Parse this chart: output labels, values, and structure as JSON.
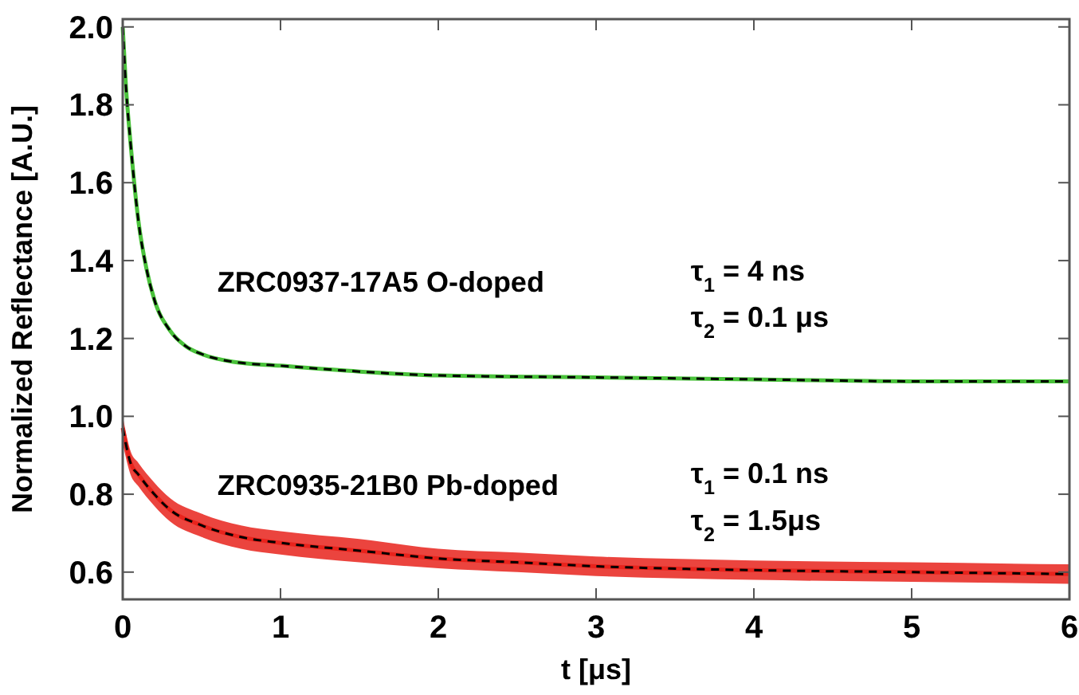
{
  "chart_data": {
    "type": "line",
    "xlabel": "t [μs]",
    "ylabel": "Normalized Reflectance [A.U.]",
    "xlim": [
      0,
      6
    ],
    "ylim": [
      0.53,
      2.02
    ],
    "xticks": [
      0,
      1,
      2,
      3,
      4,
      5,
      6
    ],
    "yticks": [
      0.6,
      0.8,
      {
        "value": 1,
        "label": "1.0"
      },
      1.2,
      1.4,
      1.6,
      1.8,
      {
        "value": 2,
        "label": "2.0"
      }
    ],
    "grid": false,
    "marker": "none",
    "series": [
      {
        "color": "#49c23a",
        "x": [
          0,
          0.02,
          0.05,
          0.1,
          0.15,
          0.2,
          0.3,
          0.4,
          0.5,
          0.7,
          1.0,
          1.5,
          2,
          3,
          4,
          5,
          6
        ],
        "values": [
          2.0,
          1.85,
          1.7,
          1.5,
          1.38,
          1.3,
          1.22,
          1.18,
          1.16,
          1.14,
          1.13,
          1.115,
          1.105,
          1.1,
          1.095,
          1.09,
          1.09
        ]
      },
      {
        "color": "#e8231c",
        "x": [
          0,
          0.05,
          0.1,
          0.2,
          0.3,
          0.5,
          0.75,
          1,
          1.5,
          2,
          2.5,
          3,
          4,
          5,
          6
        ],
        "values": [
          0.97,
          0.88,
          0.85,
          0.8,
          0.76,
          0.72,
          0.69,
          0.675,
          0.655,
          0.635,
          0.625,
          0.615,
          0.605,
          0.6,
          0.595
        ],
        "lower": [
          0.93,
          0.85,
          0.82,
          0.77,
          0.73,
          0.69,
          0.66,
          0.645,
          0.625,
          0.61,
          0.6,
          0.59,
          0.58,
          0.575,
          0.57
        ],
        "upper": [
          1.0,
          0.91,
          0.88,
          0.83,
          0.79,
          0.75,
          0.72,
          0.705,
          0.685,
          0.66,
          0.65,
          0.64,
          0.63,
          0.625,
          0.62
        ]
      },
      {
        "color": "#000000",
        "line_style": "dashed",
        "x": [
          0,
          0.02,
          0.05,
          0.1,
          0.15,
          0.2,
          0.3,
          0.4,
          0.5,
          0.7,
          1.0,
          1.5,
          2,
          3,
          4,
          5,
          6
        ],
        "values": [
          2.0,
          1.85,
          1.7,
          1.5,
          1.38,
          1.3,
          1.22,
          1.18,
          1.16,
          1.14,
          1.13,
          1.115,
          1.105,
          1.1,
          1.095,
          1.09,
          1.09
        ]
      },
      {
        "color": "#000000",
        "line_style": "dashed",
        "x": [
          0,
          0.05,
          0.1,
          0.2,
          0.3,
          0.5,
          0.75,
          1,
          1.5,
          2,
          2.5,
          3,
          4,
          5,
          6
        ],
        "values": [
          0.97,
          0.88,
          0.85,
          0.8,
          0.76,
          0.72,
          0.69,
          0.675,
          0.655,
          0.635,
          0.625,
          0.615,
          0.605,
          0.6,
          0.595
        ]
      }
    ],
    "annotations": [
      "ZRC0937-17A5 O-doped",
      "τ$_{1}$ = 4 ns",
      "τ$_{2}$ = 0.1 μs",
      "ZRC0935-21B0 Pb-doped",
      "τ$_{1}$ = 0.1 ns",
      "τ$_{2}$ = 1.5μs"
    ]
  }
}
